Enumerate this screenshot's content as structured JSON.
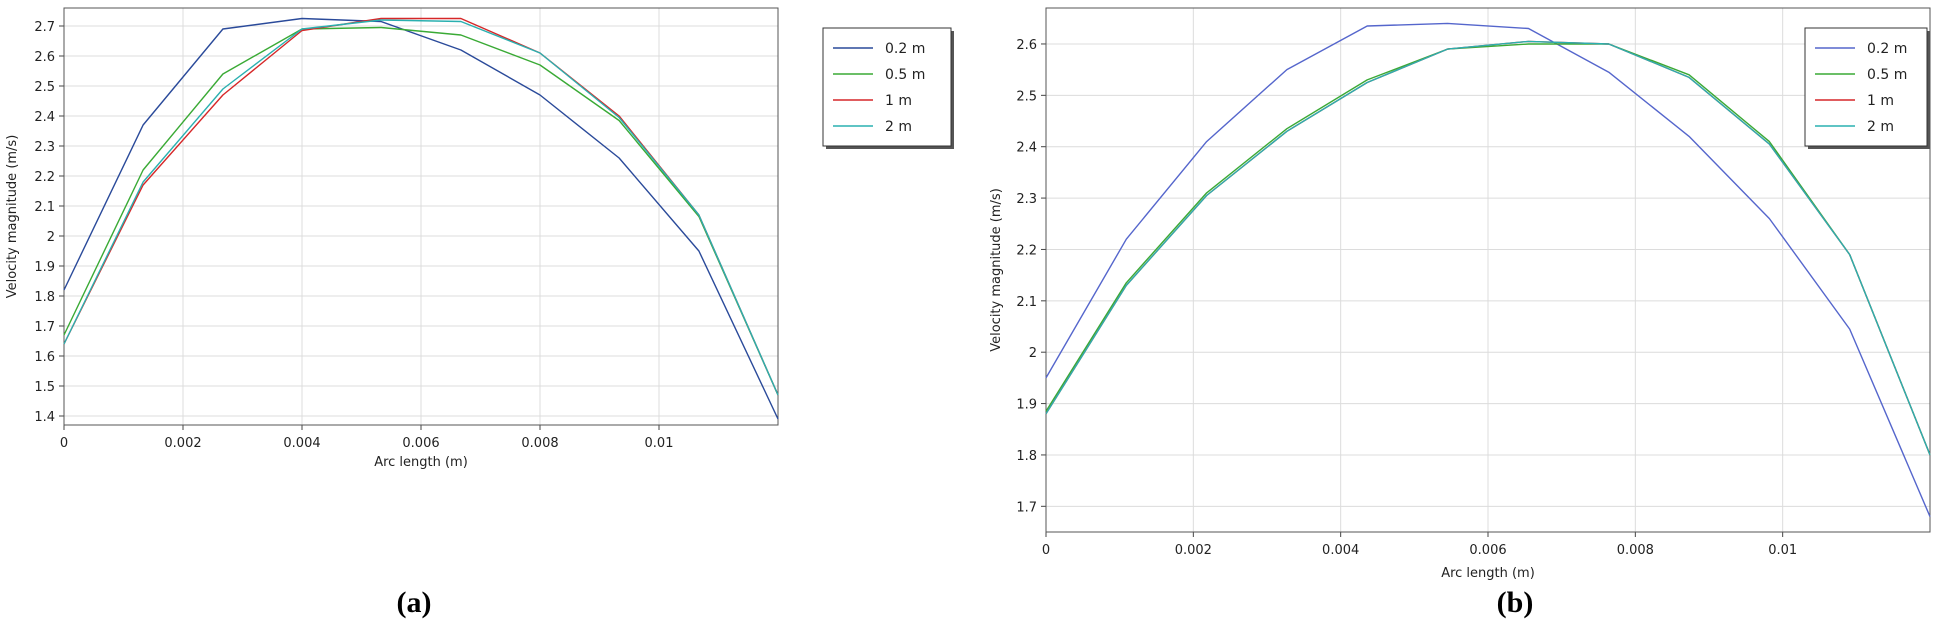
{
  "chart_data": [
    {
      "type": "line",
      "panel_label": "(a)",
      "xlabel": "Arc length (m)",
      "ylabel": "Velocity magnitude (m/s)",
      "xlim": [
        0,
        0.012
      ],
      "ylim": [
        1.37,
        2.76
      ],
      "xticks": [
        0,
        0.002,
        0.004,
        0.006,
        0.008,
        0.01
      ],
      "xtick_labels": [
        "0",
        "0.002",
        "0.004",
        "0.006",
        "0.008",
        "0.01"
      ],
      "yticks": [
        1.4,
        1.5,
        1.6,
        1.7,
        1.8,
        1.9,
        2.0,
        2.1,
        2.2,
        2.3,
        2.4,
        2.5,
        2.6,
        2.7
      ],
      "ytick_labels": [
        "1.4",
        "1.5",
        "1.6",
        "1.7",
        "1.8",
        "1.9",
        "2",
        "2.1",
        "2.2",
        "2.3",
        "2.4",
        "2.5",
        "2.6",
        "2.7"
      ],
      "grid": true,
      "legend_position": "top-right",
      "x": [
        0,
        0.00133,
        0.00267,
        0.004,
        0.00533,
        0.00667,
        0.008,
        0.00933,
        0.01067,
        0.012
      ],
      "series": [
        {
          "name": "0.2 m",
          "color": "#2a4a9a",
          "values": [
            1.82,
            2.37,
            2.69,
            2.725,
            2.715,
            2.62,
            2.47,
            2.26,
            1.95,
            1.39
          ]
        },
        {
          "name": "0.5 m",
          "color": "#3aaa35",
          "values": [
            1.67,
            2.22,
            2.54,
            2.69,
            2.695,
            2.67,
            2.57,
            2.385,
            2.065,
            1.47
          ]
        },
        {
          "name": "1 m",
          "color": "#d62728",
          "values": [
            1.64,
            2.17,
            2.47,
            2.685,
            2.725,
            2.725,
            2.61,
            2.4,
            2.07,
            1.47
          ]
        },
        {
          "name": "2 m",
          "color": "#2ab0b0",
          "values": [
            1.64,
            2.18,
            2.49,
            2.69,
            2.72,
            2.715,
            2.61,
            2.395,
            2.07,
            1.47
          ]
        }
      ]
    },
    {
      "type": "line",
      "panel_label": "(b)",
      "xlabel": "Arc length (m)",
      "ylabel": "Velocity magnitude (m/s)",
      "xlim": [
        0,
        0.012
      ],
      "ylim": [
        1.65,
        2.67
      ],
      "xticks": [
        0,
        0.002,
        0.004,
        0.006,
        0.008,
        0.01
      ],
      "xtick_labels": [
        "0",
        "0.002",
        "0.004",
        "0.006",
        "0.008",
        "0.01"
      ],
      "yticks": [
        1.7,
        1.8,
        1.9,
        2.0,
        2.1,
        2.2,
        2.3,
        2.4,
        2.5,
        2.6
      ],
      "ytick_labels": [
        "1.7",
        "1.8",
        "1.9",
        "2",
        "2.1",
        "2.2",
        "2.3",
        "2.4",
        "2.5",
        "2.6"
      ],
      "grid": true,
      "legend_position": "top-right",
      "x": [
        0,
        0.00109,
        0.00218,
        0.00327,
        0.00436,
        0.00545,
        0.00655,
        0.00764,
        0.00873,
        0.00982,
        0.01091,
        0.012
      ],
      "series": [
        {
          "name": "0.2 m",
          "color": "#5566cc",
          "values": [
            1.95,
            2.22,
            2.41,
            2.55,
            2.635,
            2.64,
            2.63,
            2.545,
            2.42,
            2.26,
            2.045,
            1.68
          ]
        },
        {
          "name": "0.5 m",
          "color": "#3aaa35",
          "values": [
            1.885,
            2.135,
            2.31,
            2.435,
            2.53,
            2.59,
            2.6,
            2.6,
            2.54,
            2.41,
            2.19,
            1.8
          ]
        },
        {
          "name": "1 m",
          "color": "#d62728",
          "values": [
            1.88,
            2.13,
            2.305,
            2.43,
            2.525,
            2.59,
            2.605,
            2.6,
            2.535,
            2.405,
            2.19,
            1.8
          ]
        },
        {
          "name": "2 m",
          "color": "#2ab0b0",
          "values": [
            1.88,
            2.13,
            2.305,
            2.43,
            2.525,
            2.59,
            2.605,
            2.6,
            2.535,
            2.405,
            2.19,
            1.8
          ]
        }
      ]
    }
  ]
}
